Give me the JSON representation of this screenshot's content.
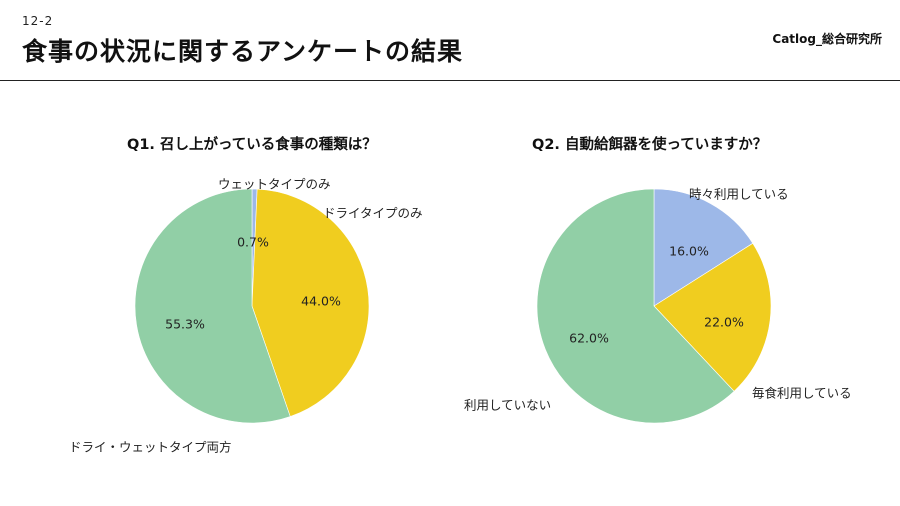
{
  "header": {
    "slide_number": "12-2",
    "title": "食事の状況に関するアンケートの結果",
    "brand": "Catlog_総合研究所"
  },
  "colors": {
    "green": "#91cfa6",
    "yellow": "#f0cd1f",
    "blue": "#9db8e8"
  },
  "chart_data": [
    {
      "type": "pie",
      "title": "Q1. 召し上がっている食事の種類は？",
      "slices": [
        {
          "label": "ウェットタイプのみ",
          "value": 0.7,
          "pct_label": "0.7%",
          "color": "#9db8e8"
        },
        {
          "label": "ドライタイプのみ",
          "value": 44.0,
          "pct_label": "44.0%",
          "color": "#f0cd1f"
        },
        {
          "label": "ドライ・ウェットタイプ両方",
          "value": 55.3,
          "pct_label": "55.3%",
          "color": "#91cfa6"
        }
      ]
    },
    {
      "type": "pie",
      "title": "Q2. 自動給餌器を使っていますか？",
      "slices": [
        {
          "label": "時々利用している",
          "value": 16.0,
          "pct_label": "16.0%",
          "color": "#9db8e8"
        },
        {
          "label": "毎食利用している",
          "value": 22.0,
          "pct_label": "22.0%",
          "color": "#f0cd1f"
        },
        {
          "label": "利用していない",
          "value": 62.0,
          "pct_label": "62.0%",
          "color": "#91cfa6"
        }
      ]
    }
  ]
}
